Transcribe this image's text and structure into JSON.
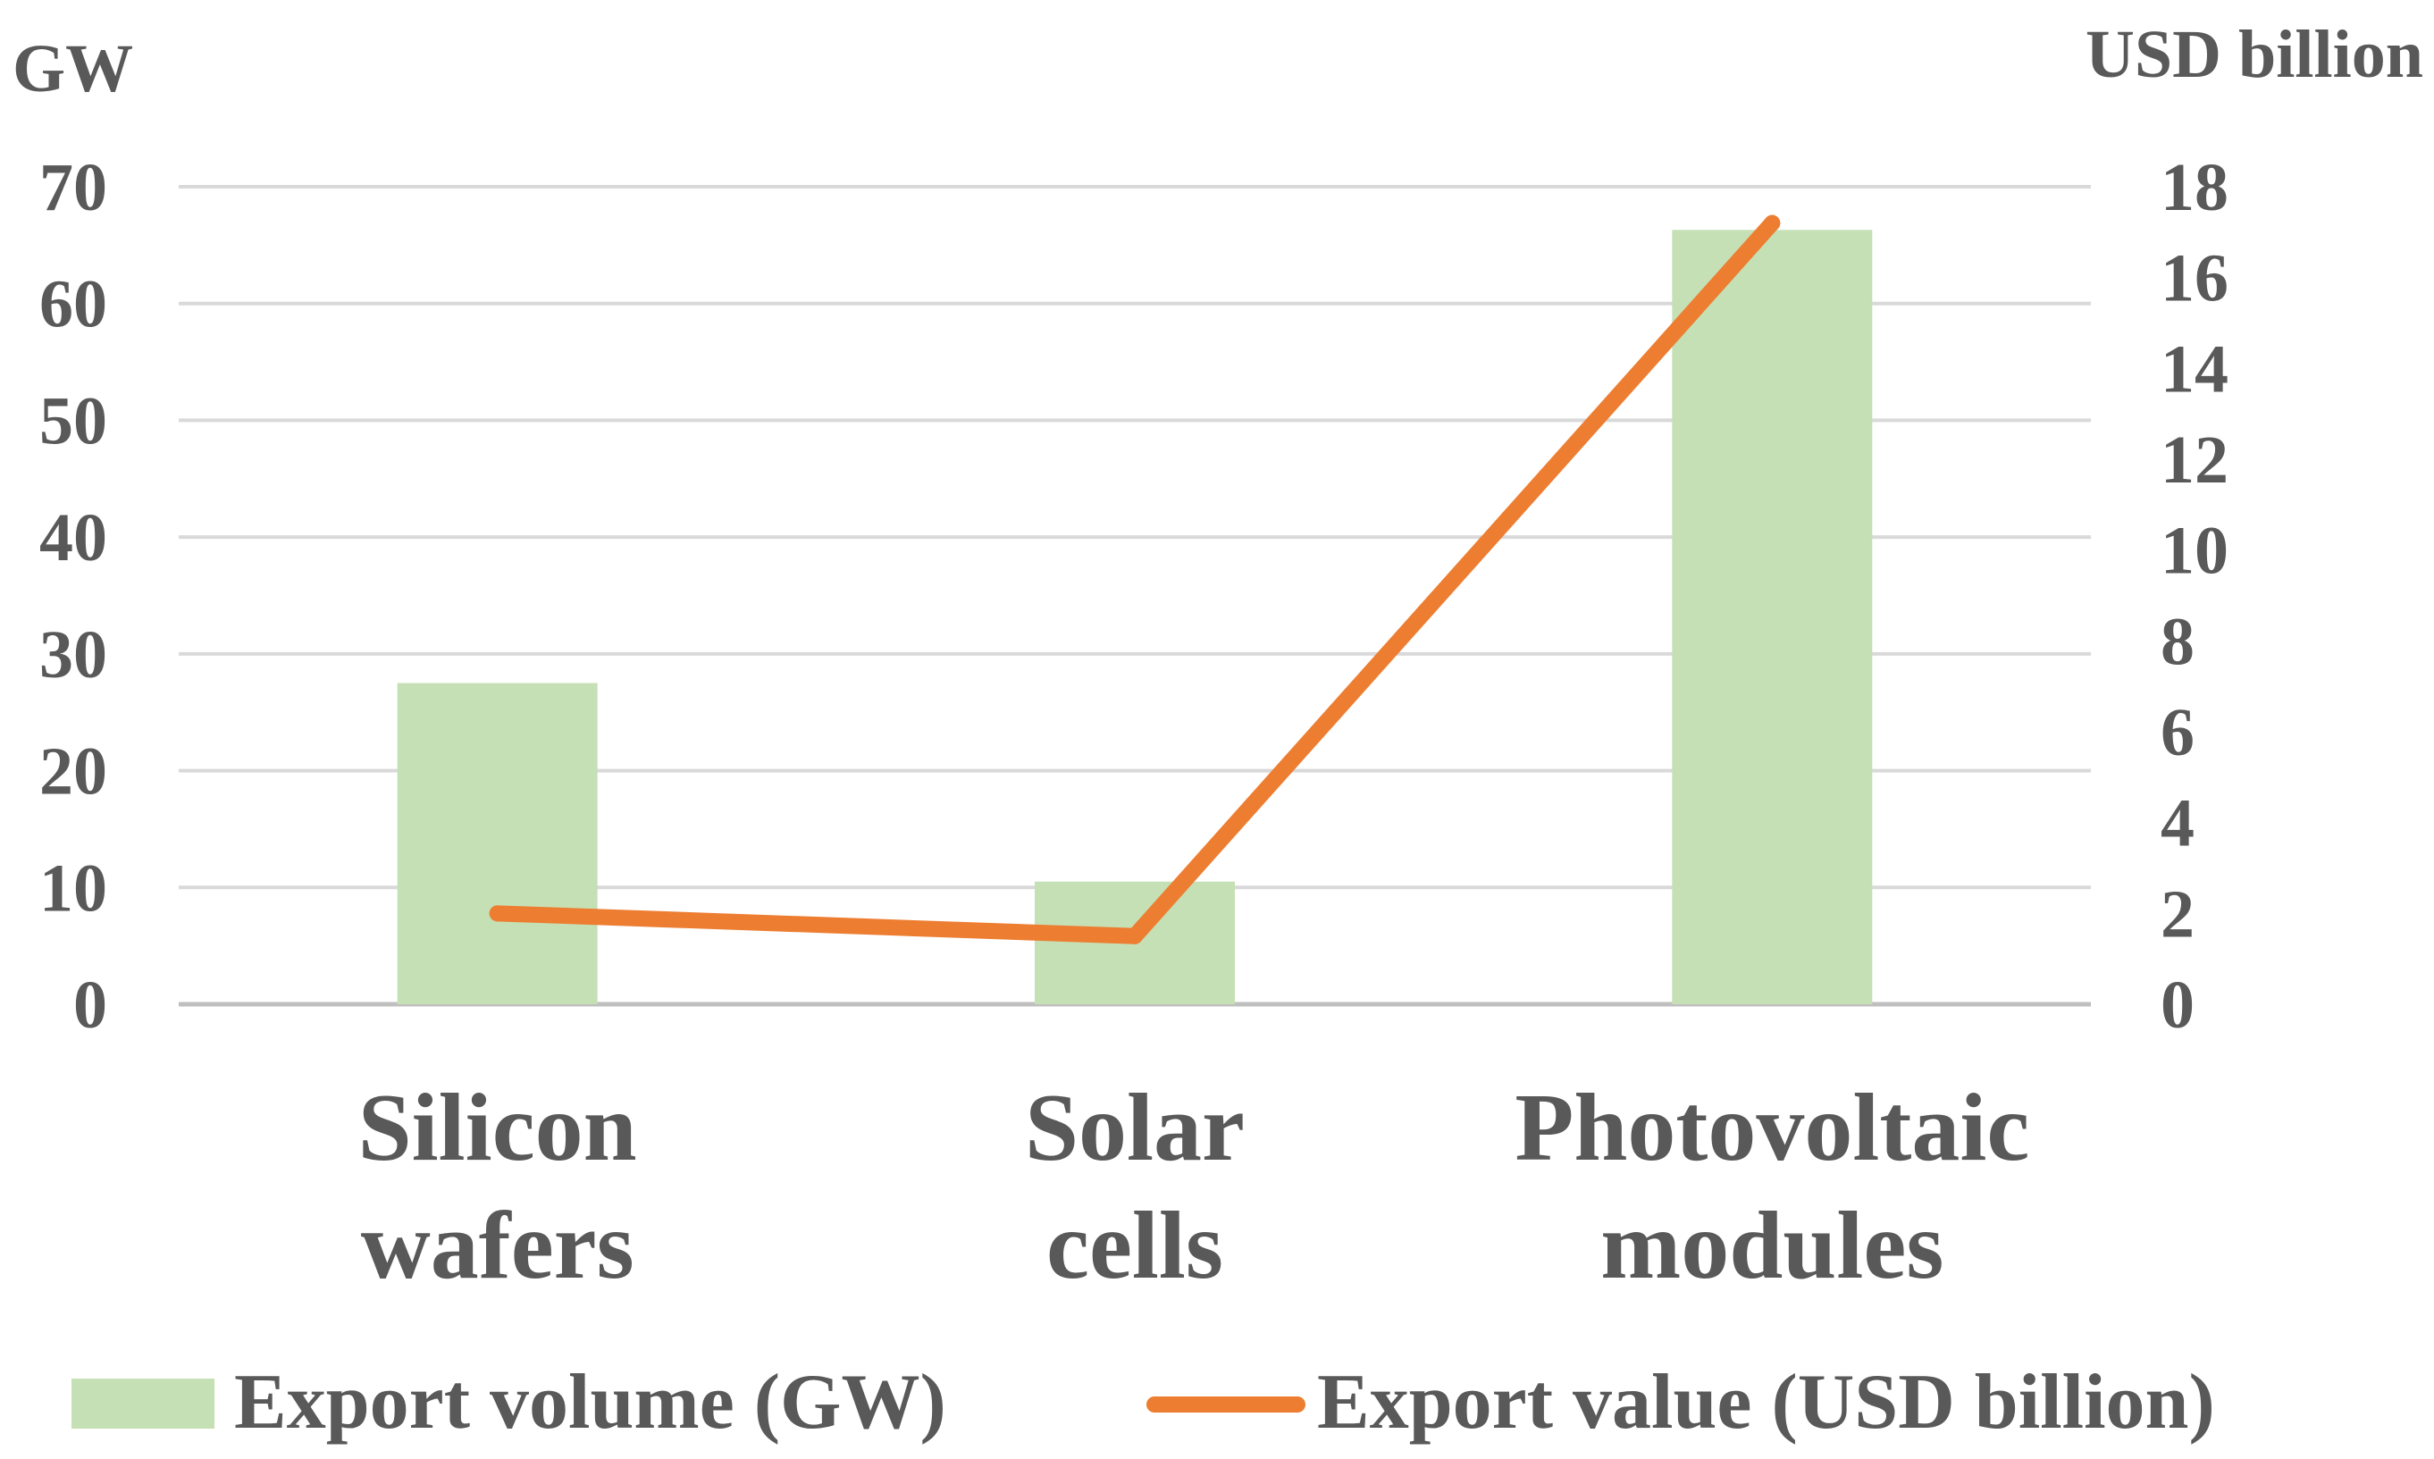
{
  "colors": {
    "bar": "#c5e0b4",
    "line": "#ed7d31",
    "grid": "#d9d9d9",
    "text": "#595959"
  },
  "chart_data": {
    "type": "bar",
    "title": "",
    "categories": [
      "Silicon wafers",
      "Solar cells",
      "Photovoltaic modules"
    ],
    "category_lines": [
      [
        "Silicon",
        "wafers"
      ],
      [
        "Solar",
        "cells"
      ],
      [
        "Photovoltaic",
        "modules"
      ]
    ],
    "series": [
      {
        "name": "Export volume (GW)",
        "kind": "bar",
        "axis": "left",
        "values": [
          27.5,
          10.5,
          66.3
        ]
      },
      {
        "name": "Export value (USD billion)",
        "kind": "line",
        "axis": "right",
        "values": [
          2.0,
          1.5,
          17.2
        ]
      }
    ],
    "y_left": {
      "label": "GW",
      "lim": [
        0,
        70
      ],
      "ticks": [
        0,
        10,
        20,
        30,
        40,
        50,
        60,
        70
      ]
    },
    "y_right": {
      "label": "USD billion",
      "lim": [
        0,
        18
      ],
      "ticks": [
        0,
        2,
        4,
        6,
        8,
        10,
        12,
        14,
        16,
        18
      ]
    },
    "grid": true,
    "legend_position": "bottom"
  }
}
